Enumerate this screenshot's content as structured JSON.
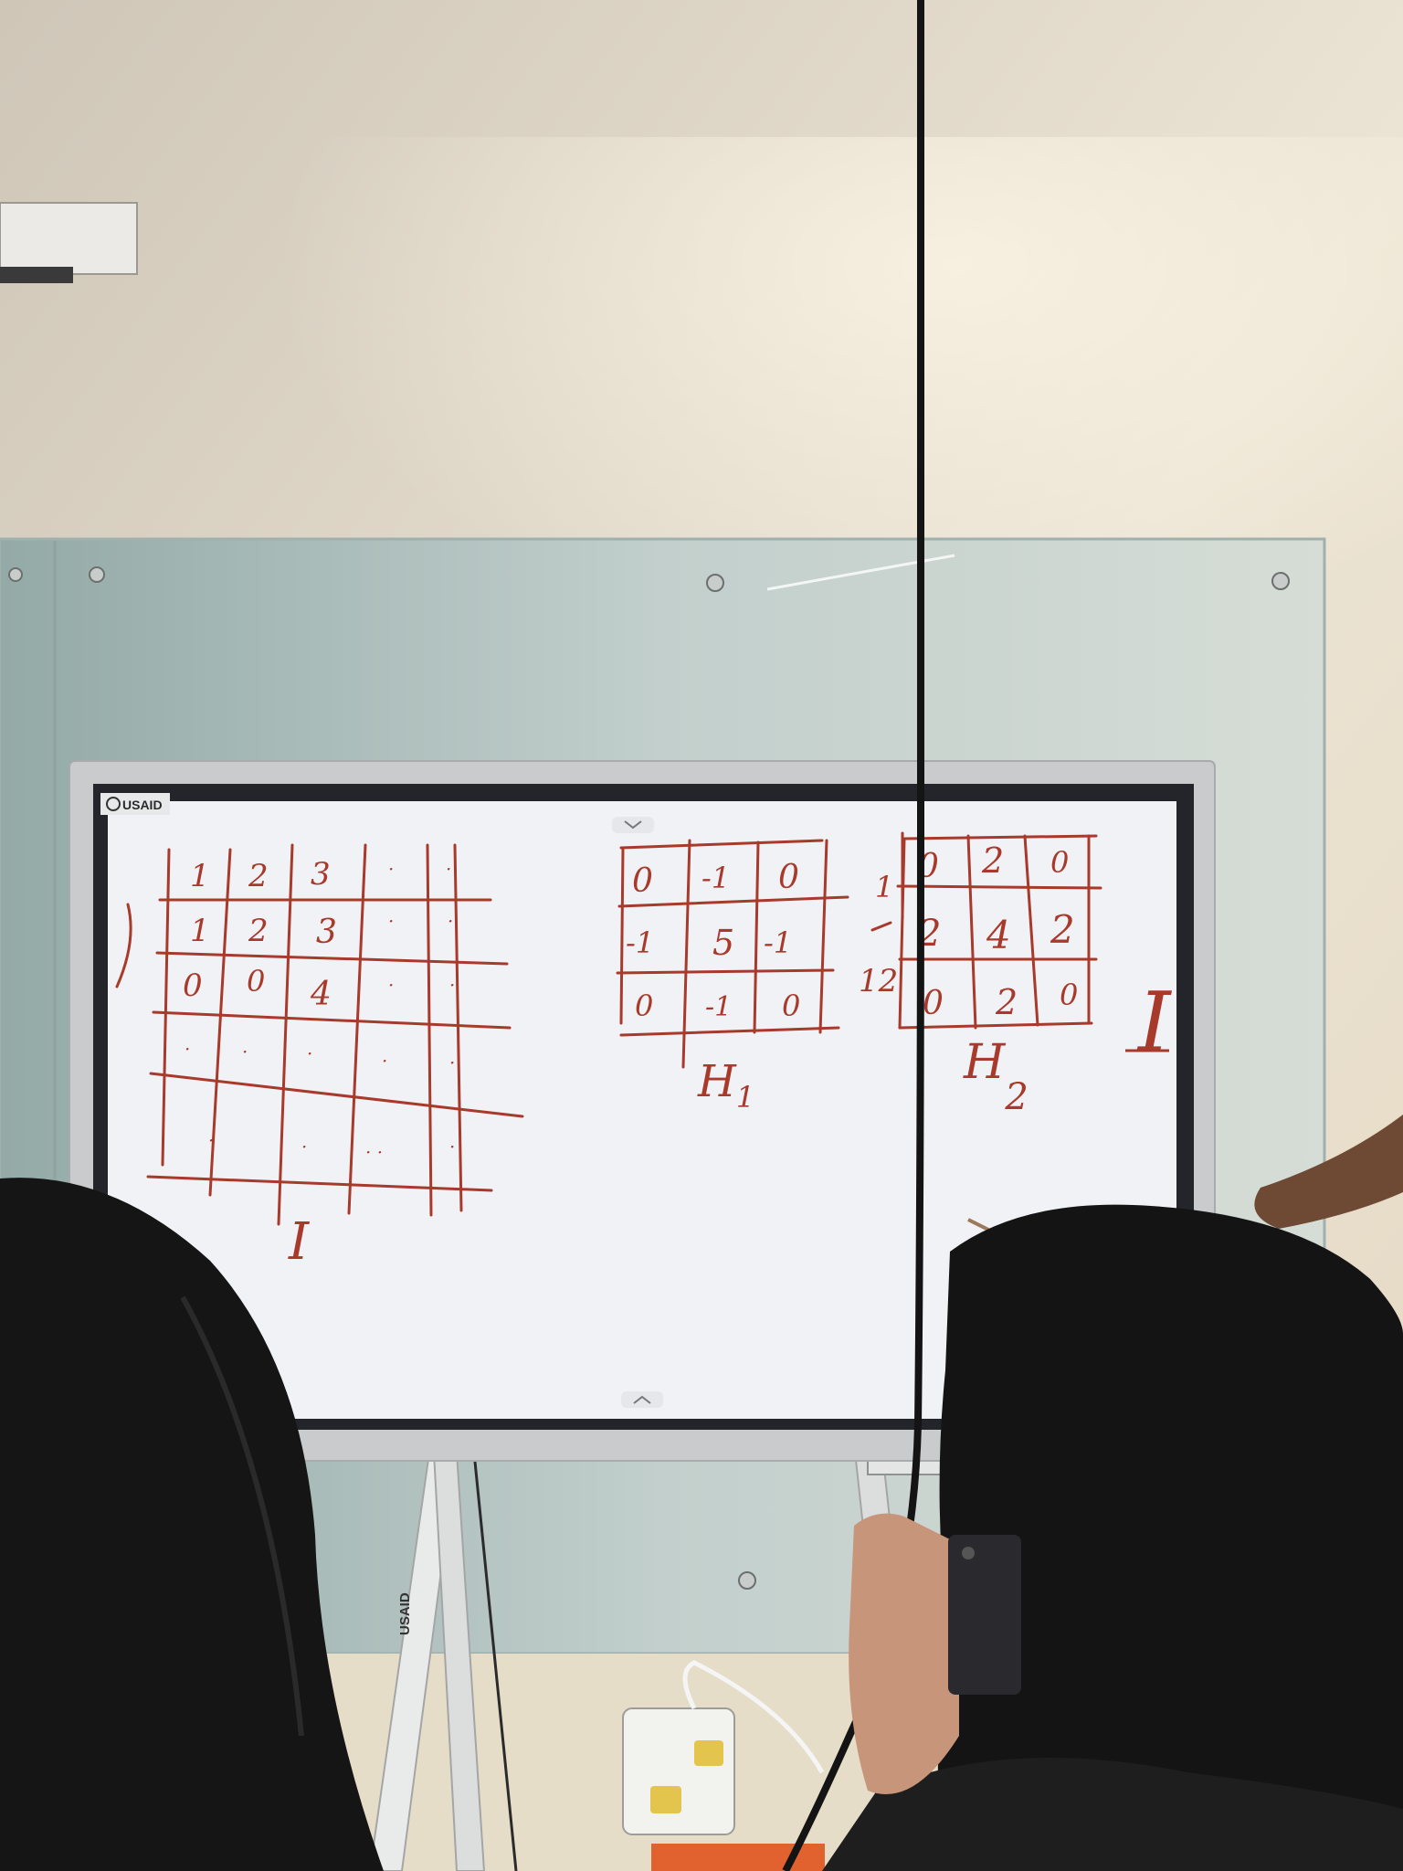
{
  "screen": {
    "brand": "USAID"
  },
  "stand": {
    "brand": "USAID"
  },
  "matrix_I": {
    "label": "I",
    "rows": [
      [
        "1",
        "2",
        "3",
        "·",
        "·"
      ],
      [
        "1",
        "2",
        "3",
        "·",
        "·"
      ],
      [
        "0",
        "0",
        "4",
        "·",
        "·"
      ],
      [
        "·",
        "·",
        "·",
        "·",
        "·"
      ],
      [
        "",
        "·",
        "·",
        "· ·",
        "·"
      ]
    ]
  },
  "matrix_H1": {
    "label": "H",
    "subscript": "1",
    "rows": [
      [
        "0",
        "-1",
        "0"
      ],
      [
        "-1",
        "5",
        "-1"
      ],
      [
        "0",
        "-1",
        "0"
      ]
    ]
  },
  "matrix_H2": {
    "label": "H",
    "subscript": "2",
    "side_numerator": "1",
    "side_denominator": "12",
    "rows": [
      [
        "0",
        "2",
        "0"
      ],
      [
        "2",
        "4",
        "2"
      ],
      [
        "0",
        "2",
        "0"
      ]
    ]
  },
  "extra_mark": "I",
  "colors": {
    "wall": "#e8dfd0",
    "glass": "#b9c7c3",
    "screen": "#f1f2f6",
    "bezel": "#23252a",
    "frame": "#c9cbcc",
    "ink": "#a83a2c",
    "hair": "#141414"
  }
}
